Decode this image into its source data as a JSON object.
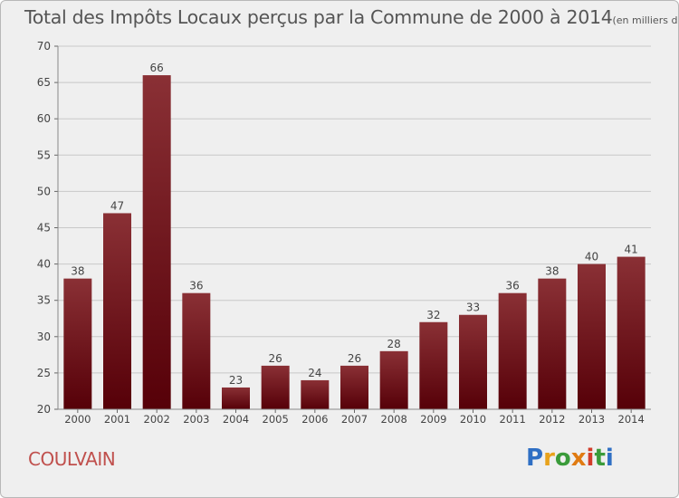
{
  "title": "Total des Impôts Locaux perçus par la Commune de 2000 à 2014",
  "unit": "(en milliers d'€)",
  "commune": "COULVAIN",
  "logo": {
    "text": "Proxiti",
    "colors": [
      "#2f6fc4",
      "#e8a21b",
      "#3a9b3a",
      "#e07b12",
      "#d23c2a",
      "#3a9b3a",
      "#2f6fc4"
    ]
  },
  "colors": {
    "bar_top": "#8a3035",
    "bar_bottom": "#560008",
    "grid": "#c8c8c8",
    "axis_text": "#444444"
  },
  "chart_data": {
    "type": "bar",
    "title": "Total des Impôts Locaux perçus par la Commune de 2000 à 2014",
    "ylabel": "en milliers d'€",
    "xlabel": "",
    "categories": [
      "2000",
      "2001",
      "2002",
      "2003",
      "2004",
      "2005",
      "2006",
      "2007",
      "2008",
      "2009",
      "2010",
      "2011",
      "2012",
      "2013",
      "2014"
    ],
    "values": [
      38,
      47,
      66,
      36,
      23,
      26,
      24,
      26,
      28,
      32,
      33,
      36,
      38,
      40,
      41
    ],
    "ylim": [
      20,
      70
    ],
    "yticks": [
      20,
      25,
      30,
      35,
      40,
      45,
      50,
      55,
      60,
      65,
      70
    ],
    "grid": true,
    "legend": "none"
  }
}
